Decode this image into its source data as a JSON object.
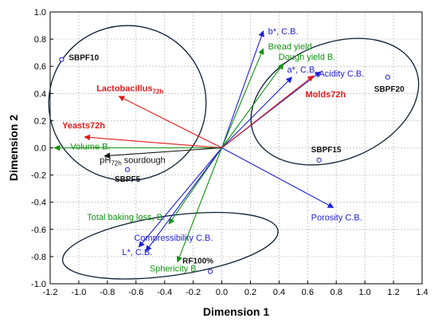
{
  "chart_data": {
    "type": "scatter",
    "title": "",
    "xlabel": "Dimension 1",
    "ylabel": "Dimension 2",
    "xlim": [
      -1.2,
      1.4
    ],
    "ylim": [
      -1.0,
      1.0
    ],
    "xticks": [
      "-1.2",
      "-1.0",
      "-0.8",
      "-0.6",
      "-0.4",
      "-0.2",
      "0.0",
      "0.2",
      "0.4",
      "0.6",
      "0.8",
      "1.0",
      "1.2",
      "1.4"
    ],
    "yticks": [
      "-1.0",
      "-0.8",
      "-0.6",
      "-0.4",
      "-0.2",
      "0.0",
      "0.2",
      "0.4",
      "0.6",
      "0.8",
      "1.0"
    ],
    "grid": true,
    "colors": {
      "blue": "#1f1fd6",
      "green": "#109310",
      "red": "#e01b1b",
      "black": "#111111"
    },
    "vectors": [
      {
        "label": "b*, C.B.",
        "sub": "",
        "x": 0.29,
        "y": 0.86,
        "color": "blue",
        "bold": false
      },
      {
        "label": "Bread yield",
        "sub": "",
        "x": 0.29,
        "y": 0.73,
        "color": "green",
        "bold": false
      },
      {
        "label": "Dough yield B.",
        "sub": "",
        "x": 0.43,
        "y": 0.62,
        "color": "green",
        "bold": false
      },
      {
        "label": "a*, C.B.",
        "sub": "",
        "x": 0.49,
        "y": 0.52,
        "color": "blue",
        "bold": false
      },
      {
        "label": "Acidity C.B.",
        "sub": "",
        "x": 0.69,
        "y": 0.56,
        "color": "blue",
        "bold": false
      },
      {
        "label": "Molds72h",
        "sub": "",
        "x": 0.64,
        "y": 0.53,
        "color": "red",
        "bold": true
      },
      {
        "label": "Lactobacillus",
        "sub": "72h",
        "x": -0.72,
        "y": 0.38,
        "color": "red",
        "bold": true
      },
      {
        "label": "Yeasts72h",
        "sub": "",
        "x": -0.96,
        "y": 0.08,
        "color": "red",
        "bold": true
      },
      {
        "label": "Volume B.",
        "sub": "",
        "x": -1.17,
        "y": 0.0,
        "color": "green",
        "bold": false
      },
      {
        "label": "pH",
        "sub": "72h",
        "label2": " sourdough",
        "x": -0.82,
        "y": -0.06,
        "color": "black",
        "bold": false
      },
      {
        "label": "Porosity C.B.",
        "sub": "",
        "x": 0.78,
        "y": -0.44,
        "color": "blue",
        "bold": false
      },
      {
        "label": "Total baking loss, B.",
        "sub": "",
        "x": -0.37,
        "y": -0.56,
        "color": "green",
        "bold": false
      },
      {
        "label": "Compressibility C.B.",
        "sub": "",
        "x": -0.58,
        "y": -0.73,
        "color": "blue",
        "bold": false
      },
      {
        "label": "L*, C.B.",
        "sub": "",
        "x": -0.53,
        "y": -0.76,
        "color": "blue",
        "bold": false
      },
      {
        "label": "Sphericity B.",
        "sub": "",
        "x": -0.31,
        "y": -0.84,
        "color": "green",
        "bold": false
      }
    ],
    "samples": [
      {
        "label": "SBPF10",
        "x": -1.12,
        "y": 0.65
      },
      {
        "label": "SBPF5",
        "x": -0.66,
        "y": -0.16
      },
      {
        "label": "SBPF20",
        "x": 1.16,
        "y": 0.52
      },
      {
        "label": "SBPF15",
        "x": 0.68,
        "y": -0.09
      },
      {
        "label": "RF100%",
        "x": -0.08,
        "y": -0.91
      }
    ],
    "ellipses": [
      {
        "cx": -0.66,
        "cy": 0.33,
        "rx": 0.55,
        "ry": 0.57,
        "rot": 0
      },
      {
        "cx": 0.79,
        "cy": 0.34,
        "rx": 0.61,
        "ry": 0.43,
        "rot": -22
      },
      {
        "cx": -0.36,
        "cy": -0.72,
        "rx": 0.76,
        "ry": 0.22,
        "rot": -8
      }
    ]
  }
}
